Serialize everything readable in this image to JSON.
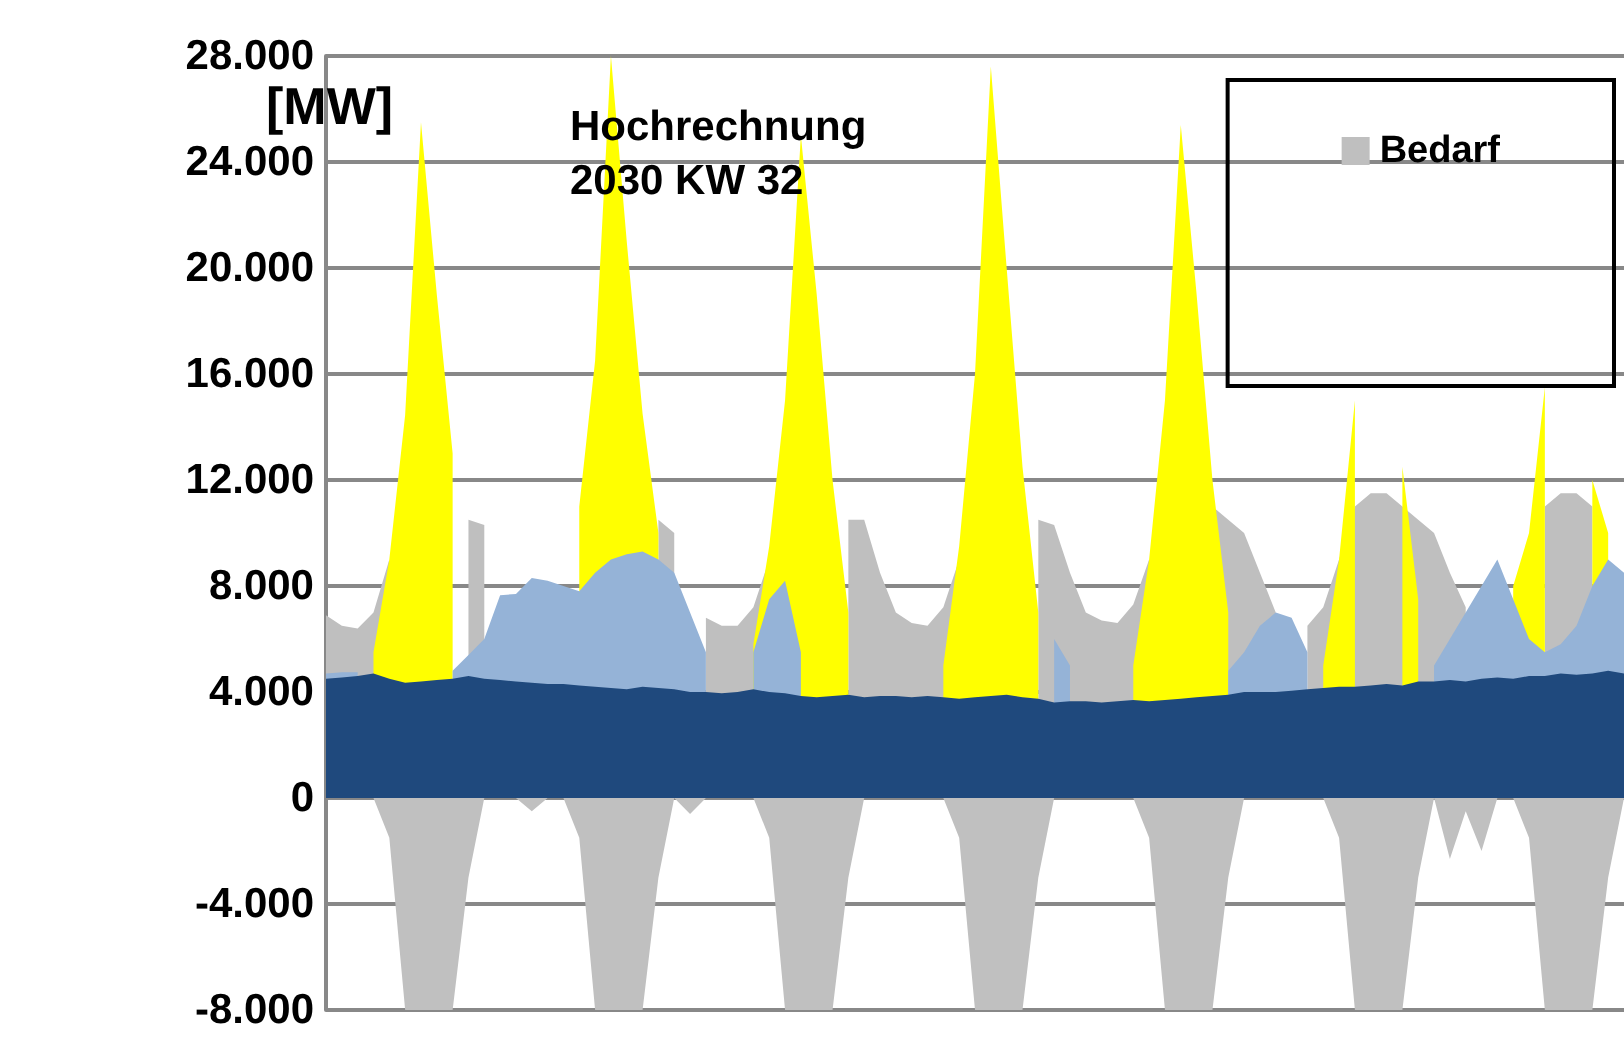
{
  "chart_data": {
    "type": "area",
    "ylabel": "[MW]",
    "annotations": [
      "Hochrechnung\n2030 KW 32"
    ],
    "categories": [
      null,
      null,
      null,
      null,
      null,
      null,
      null,
      null,
      null,
      null,
      null,
      null,
      null,
      null,
      null,
      null,
      null,
      null,
      null,
      null,
      null,
      null,
      null,
      null,
      null,
      null,
      null,
      null,
      null,
      null,
      null,
      null,
      null,
      null,
      null,
      null,
      null,
      null,
      null,
      null,
      null,
      null,
      null,
      null,
      null,
      null,
      null,
      null,
      null,
      null,
      null,
      null,
      null,
      null,
      null,
      null,
      null,
      null,
      null,
      null,
      null,
      null,
      null,
      null,
      null,
      null,
      null,
      null,
      null,
      null,
      null,
      null,
      null,
      null,
      null,
      null,
      null,
      null,
      null,
      null,
      null,
      null,
      null
    ],
    "series": [
      {
        "name": "Bedarf",
        "color": "#bfbfbf",
        "values": [
          6900,
          6500,
          6400,
          7000,
          9000,
          null,
          null,
          null,
          null,
          10500,
          10300,
          null,
          null,
          null,
          null,
          null,
          null,
          null,
          null,
          null,
          null,
          10500,
          10000,
          null,
          6800,
          6500,
          6500,
          7200,
          9000,
          null,
          null,
          null,
          null,
          10500,
          10500,
          8500,
          7000,
          6600,
          6500,
          7200,
          9000,
          null,
          null,
          null,
          null,
          10500,
          10300,
          8500,
          7000,
          6700,
          6600,
          7300,
          9000,
          null,
          null,
          null,
          11000,
          10500,
          10000,
          8500,
          7000,
          null,
          6500,
          7200,
          9000,
          11000,
          11500,
          11500,
          11000,
          10500,
          10000,
          8500,
          7200,
          null,
          null,
          null,
          null,
          11000,
          11500,
          11500,
          11000,
          null,
          null
        ]
      },
      {
        "color": "#c0c0c0",
        "values": [
          0,
          0,
          0,
          0,
          -1500,
          -8000,
          -8000,
          -8000,
          -8000,
          -3000,
          0,
          0,
          0,
          -500,
          0,
          0,
          -1500,
          -8000,
          -8000,
          -8000,
          -8000,
          -3000,
          0,
          -600,
          0,
          0,
          0,
          0,
          -1500,
          -8000,
          -8000,
          -8000,
          -8000,
          -3000,
          0,
          0,
          0,
          0,
          0,
          0,
          -1500,
          -8000,
          -8000,
          -8000,
          -8000,
          -3000,
          0,
          0,
          0,
          0,
          0,
          0,
          -1500,
          -8000,
          -8000,
          -8000,
          -8000,
          -3000,
          0,
          0,
          0,
          0,
          0,
          0,
          -1500,
          -8000,
          -8000,
          -8000,
          -8000,
          -3000,
          0,
          -2300,
          -500,
          -2000,
          0,
          0,
          -1500,
          -8000,
          -8000,
          -8000,
          -8000,
          -3000,
          0
        ]
      },
      {
        "color": "#ffff00",
        "values": [
          null,
          null,
          null,
          5500,
          9000,
          14450,
          25500,
          19000,
          13000,
          null,
          null,
          null,
          null,
          null,
          null,
          null,
          11000,
          16500,
          28000,
          21000,
          14500,
          10000,
          null,
          null,
          null,
          null,
          null,
          5800,
          9500,
          15000,
          25000,
          19000,
          12000,
          7000,
          null,
          null,
          null,
          null,
          null,
          5000,
          9500,
          16000,
          27600,
          20000,
          12500,
          7000,
          null,
          null,
          null,
          null,
          null,
          5000,
          9000,
          15000,
          25400,
          19000,
          12000,
          7000,
          null,
          null,
          null,
          null,
          null,
          5000,
          9000,
          15000,
          null,
          null,
          12500,
          7500,
          null,
          null,
          null,
          null,
          null,
          8000,
          10000,
          15500,
          null,
          null,
          12000,
          10000,
          null
        ]
      },
      {
        "color": "#95b3d7",
        "values": [
          4700,
          4750,
          4750,
          null,
          null,
          null,
          null,
          null,
          4800,
          5400,
          6000,
          7650,
          7700,
          8300,
          8200,
          8000,
          7800,
          8500,
          9000,
          9200,
          9300,
          9000,
          8500,
          7000,
          5500,
          null,
          null,
          5500,
          7500,
          8200,
          5500,
          null,
          null,
          null,
          null,
          null,
          null,
          null,
          null,
          null,
          null,
          null,
          null,
          null,
          null,
          null,
          6000,
          5000,
          null,
          null,
          null,
          null,
          null,
          null,
          null,
          null,
          null,
          4800,
          5500,
          6500,
          7000,
          6800,
          5500,
          null,
          null,
          null,
          null,
          null,
          null,
          null,
          5000,
          6000,
          7000,
          8000,
          9000,
          7500,
          6000,
          5500,
          5800,
          6500,
          8000,
          9000,
          8500
        ]
      },
      {
        "color": "#1f497d",
        "values": [
          4500,
          4550,
          4600,
          4700,
          4500,
          4350,
          4400,
          4450,
          4500,
          4600,
          4500,
          4450,
          4400,
          4350,
          4300,
          4300,
          4250,
          4200,
          4150,
          4100,
          4200,
          4150,
          4100,
          4000,
          4000,
          3950,
          4000,
          4100,
          4000,
          3950,
          3850,
          3800,
          3850,
          3900,
          3800,
          3850,
          3850,
          3800,
          3850,
          3800,
          3750,
          3800,
          3850,
          3900,
          3800,
          3750,
          3600,
          3650,
          3650,
          3600,
          3650,
          3700,
          3650,
          3700,
          3750,
          3800,
          3850,
          3900,
          4000,
          4000,
          4000,
          4050,
          4100,
          4150,
          4200,
          4200,
          4250,
          4300,
          4250,
          4400,
          4400,
          4450,
          4400,
          4500,
          4550,
          4500,
          4600,
          4600,
          4700,
          4650,
          4700,
          4800,
          4700
        ]
      }
    ],
    "ylim": [
      -8000,
      28000
    ],
    "yticks": [
      {
        "value": -8000,
        "label": "-8.000"
      },
      {
        "value": -4000,
        "label": "-4.000"
      },
      0,
      {
        "value": 4000,
        "label": "4.000"
      },
      {
        "value": 8000,
        "label": "8.000"
      },
      {
        "value": 12000,
        "label": "12.000"
      },
      {
        "value": 16000,
        "label": "16.000"
      },
      {
        "value": 20000,
        "label": "20.000"
      },
      {
        "value": 24000,
        "label": "24.000"
      },
      {
        "value": 28000,
        "label": "28.000"
      }
    ],
    "grid": "y",
    "legend": "top right",
    "tick_labels": "y"
  }
}
